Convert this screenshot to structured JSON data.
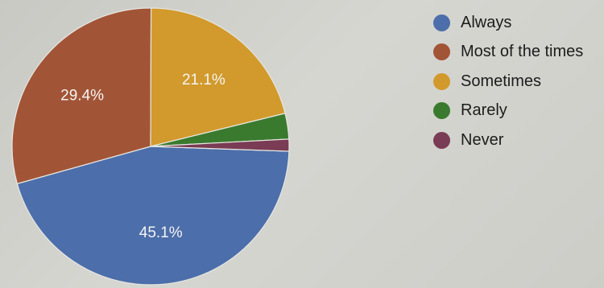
{
  "chart_data": {
    "type": "pie",
    "categories": [
      "Always",
      "Most of the times",
      "Sometimes",
      "Rarely",
      "Never"
    ],
    "values": [
      45.1,
      29.4,
      21.1,
      3.0,
      1.4
    ],
    "value_labels": [
      "45.1%",
      "29.4%",
      "21.1%",
      "",
      ""
    ],
    "colors": [
      "#4c6eaa",
      "#a25536",
      "#d29a2c",
      "#3a7a2e",
      "#7a3b54"
    ],
    "legend_position": "right",
    "title": ""
  }
}
